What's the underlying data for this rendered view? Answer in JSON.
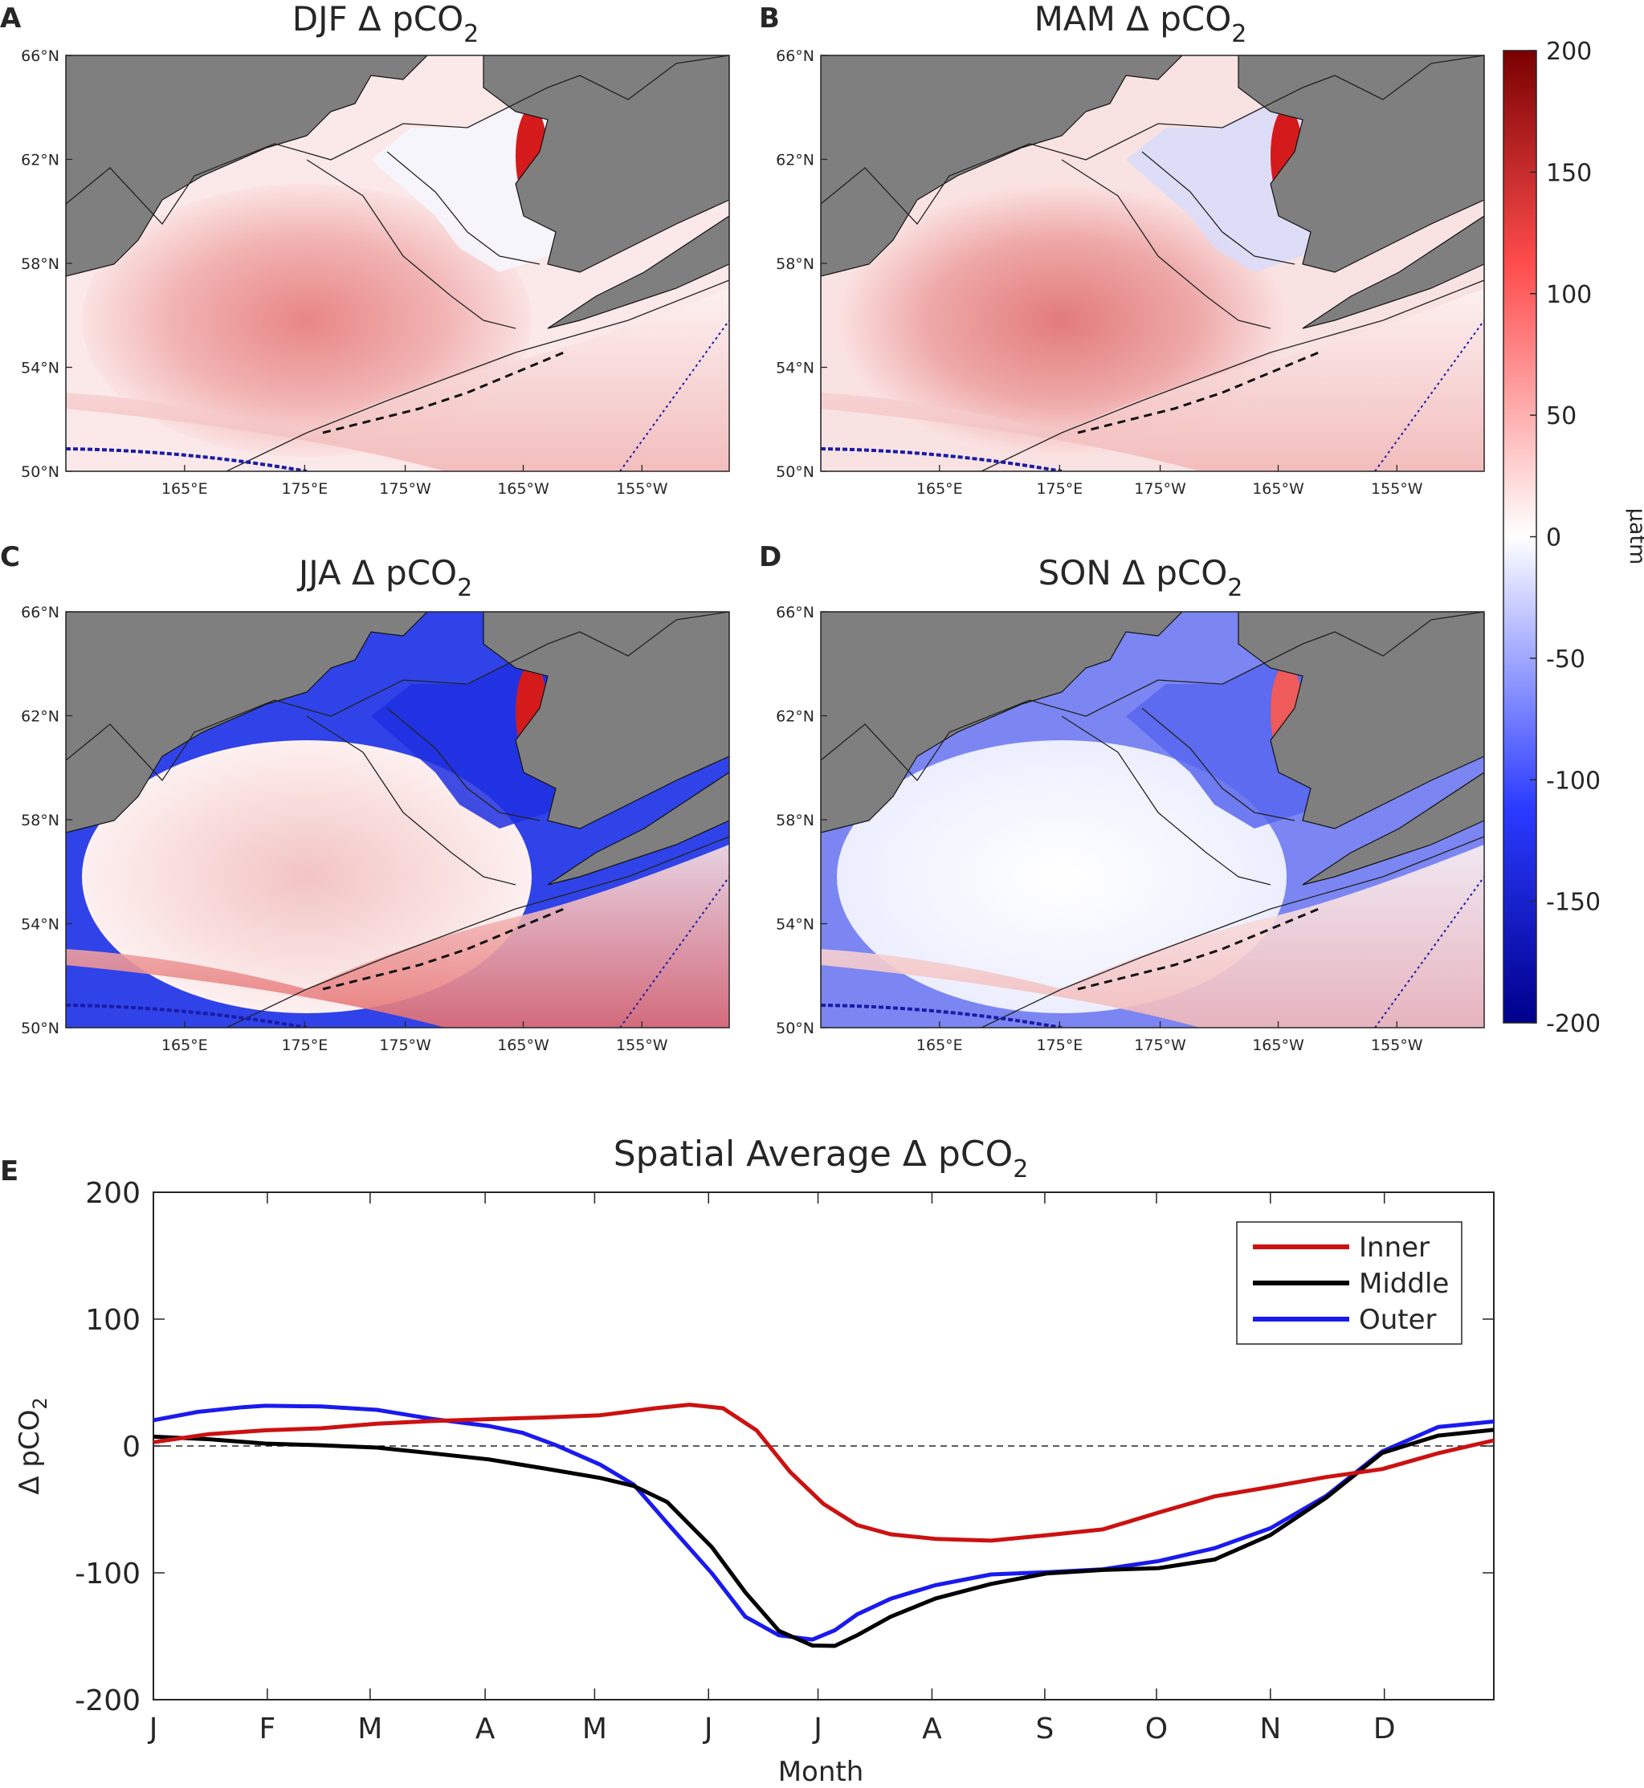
{
  "figure": {
    "colorbar": {
      "ticks": [
        "200",
        "150",
        "100",
        "50",
        "0",
        "-50",
        "-100",
        "-150",
        "-200"
      ],
      "unit": "μatm",
      "colors": {
        "low": "#00008b",
        "mid_low": "#2a3bff",
        "zero": "#ffffff",
        "mid_high": "#ff4d4d",
        "high": "#7a0000"
      }
    },
    "maps": [
      {
        "letter": "A",
        "title_main": "DJF Δ pCO",
        "title_sub": "2",
        "anomaly": "warm"
      },
      {
        "letter": "B",
        "title_main": "MAM Δ pCO",
        "title_sub": "2",
        "anomaly": "warm_blue_inner"
      },
      {
        "letter": "C",
        "title_main": "JJA Δ pCO",
        "title_sub": "2",
        "anomaly": "blue_shelf"
      },
      {
        "letter": "D",
        "title_main": "SON Δ pCO",
        "title_sub": "2",
        "anomaly": "cool"
      }
    ],
    "map_axes": {
      "lat_labels": [
        "66°N",
        "62°N",
        "58°N",
        "54°N",
        "50°N"
      ],
      "lon_labels": [
        "165°E",
        "175°E",
        "175°W",
        "165°W",
        "155°W"
      ]
    },
    "land_color": "#7f7f7f"
  },
  "chart_data": {
    "type": "line",
    "letter": "E",
    "title_main": "Spatial Average Δ pCO",
    "title_sub": "2",
    "xlabel": "Month",
    "ylabel_main": "Δ pCO",
    "ylabel_sub": "2",
    "xlim": [
      0,
      12
    ],
    "ylim": [
      -200,
      200
    ],
    "yticks": [
      200,
      100,
      0,
      -100,
      -200
    ],
    "ytick_labels": [
      "200",
      "100",
      "0",
      "-100",
      "-200"
    ],
    "month_labels": [
      "J",
      "F",
      "M",
      "A",
      "M",
      "J",
      "J",
      "A",
      "S",
      "O",
      "N",
      "D"
    ],
    "zero_line": "dashed",
    "legend_position": "top-right",
    "series": [
      {
        "name": "Inner",
        "color": "#cc1111",
        "x": [
          0,
          0.5,
          1,
          1.5,
          2,
          2.5,
          3,
          3.5,
          4,
          4.5,
          4.8,
          5.1,
          5.4,
          5.7,
          6,
          6.3,
          6.6,
          7,
          7.5,
          8,
          8.5,
          9,
          9.5,
          10,
          10.5,
          11,
          11.5,
          12
        ],
        "y": [
          3,
          10,
          13,
          14,
          17,
          19,
          21,
          23,
          25,
          30,
          32,
          29,
          12,
          -20,
          -45,
          -62,
          -70,
          -74,
          -75,
          -70,
          -65,
          -52,
          -40,
          -33,
          -25,
          -18,
          -5,
          5
        ]
      },
      {
        "name": "Middle",
        "color": "#000000",
        "x": [
          0,
          0.5,
          1,
          1.5,
          2,
          2.5,
          3,
          3.5,
          4,
          4.3,
          4.6,
          5,
          5.3,
          5.6,
          5.9,
          6.1,
          6.3,
          6.6,
          7,
          7.5,
          8,
          8.5,
          9,
          9.5,
          10,
          10.5,
          11,
          11.5,
          12
        ],
        "y": [
          8,
          6,
          2,
          0,
          -2,
          -6,
          -10,
          -17,
          -25,
          -32,
          -45,
          -80,
          -115,
          -145,
          -157,
          -158,
          -150,
          -135,
          -120,
          -108,
          -100,
          -98,
          -97,
          -90,
          -70,
          -40,
          -5,
          8,
          12
        ]
      },
      {
        "name": "Outer",
        "color": "#1a1aee",
        "x": [
          0,
          0.4,
          0.8,
          1,
          1.5,
          2,
          2.5,
          3,
          3.3,
          3.6,
          4,
          4.3,
          4.6,
          5,
          5.3,
          5.6,
          5.9,
          6.1,
          6.3,
          6.6,
          7,
          7.5,
          8,
          8.5,
          9,
          9.5,
          10,
          10.5,
          11,
          11.5,
          12
        ],
        "y": [
          21,
          27,
          30,
          31,
          31,
          29,
          22,
          16,
          10,
          0,
          -15,
          -30,
          -60,
          -100,
          -135,
          -150,
          -153,
          -145,
          -132,
          -120,
          -110,
          -102,
          -100,
          -97,
          -90,
          -80,
          -65,
          -40,
          -5,
          15,
          20
        ]
      }
    ]
  }
}
